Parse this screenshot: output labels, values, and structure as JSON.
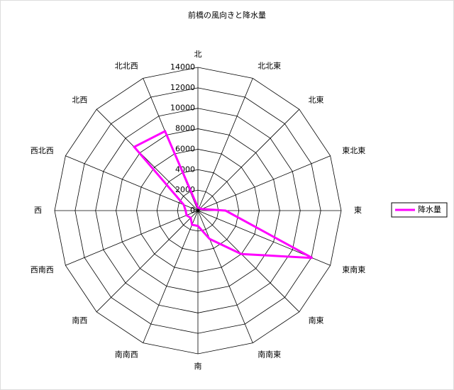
{
  "chart_data": {
    "type": "radar",
    "title": "前橋の風向きと降水量",
    "categories": [
      "北",
      "北北東",
      "北東",
      "東北東",
      "東",
      "東南東",
      "南東",
      "南南東",
      "南",
      "南南西",
      "南西",
      "西南西",
      "西",
      "西北西",
      "北西",
      "北北西"
    ],
    "series": [
      {
        "name": "降水量",
        "color": "#ff00ff",
        "values": [
          300,
          300,
          300,
          400,
          2700,
          12100,
          6000,
          3000,
          1500,
          1500,
          1000,
          1200,
          1200,
          1500,
          8800,
          8400
        ]
      }
    ],
    "ylim": [
      0,
      14000
    ],
    "yticks": [
      0,
      2000,
      4000,
      6000,
      8000,
      10000,
      12000,
      14000
    ],
    "grid": true,
    "legend": "right"
  }
}
